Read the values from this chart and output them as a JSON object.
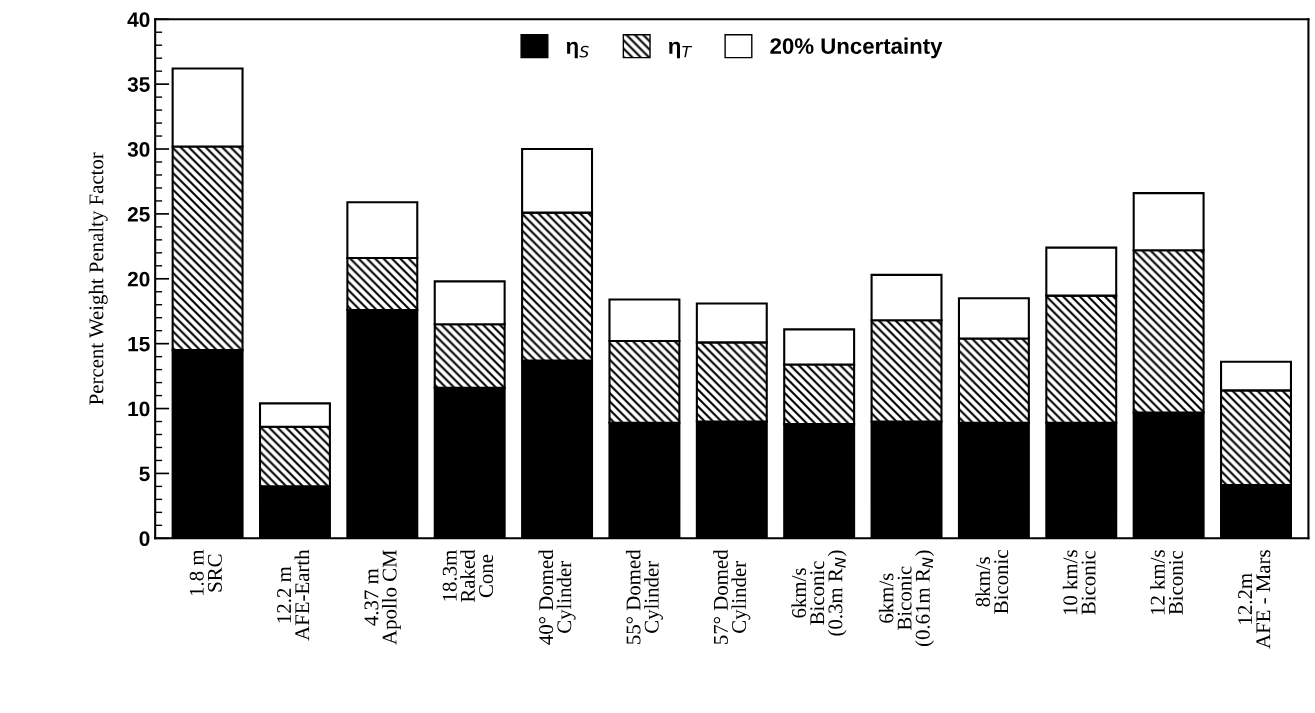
{
  "chart_data": {
    "type": "bar",
    "stacked": true,
    "ylabel": "Percent Weight Penalty Factor",
    "categories": [
      "1.8 m\nSRC",
      "12.2 m\nAFE-Earth",
      "4.37 m\nApollo CM",
      "18.3m\nRaked\nCone",
      "40° Domed\nCylinder",
      "55° Domed\nCylinder",
      "57° Domed\nCylinder",
      "6km/s\nBiconic\n(0.3m R$_{N}$)",
      "6km/s\nBiconic\n(0.61m R$_{N}$)",
      "8km/s\nBiconic",
      "10 km/s\nBiconic",
      "12 km/s\nBiconic",
      "12.2m\nAFE - Mars"
    ],
    "series": [
      {
        "name": "η$_{S}$",
        "color": "#000000",
        "values": [
          14.5,
          4.0,
          17.6,
          11.6,
          13.7,
          8.9,
          9.0,
          8.8,
          9.0,
          8.9,
          8.9,
          9.7,
          4.1
        ]
      },
      {
        "name": "η$_{T}$",
        "color": "#000000",
        "values": [
          15.7,
          4.6,
          4.0,
          4.9,
          11.4,
          6.3,
          6.1,
          4.6,
          7.8,
          6.5,
          9.8,
          12.5,
          7.3
        ]
      },
      {
        "name": "20% Uncertainty",
        "color": "#ffffff",
        "values": [
          6.0,
          1.8,
          4.3,
          3.3,
          4.9,
          3.2,
          3.0,
          2.7,
          3.5,
          3.1,
          3.7,
          4.4,
          2.2
        ]
      }
    ],
    "ylim": [
      0,
      40
    ],
    "yticks": [
      0,
      5,
      10,
      15,
      20,
      25,
      30,
      35,
      40
    ],
    "grid": false,
    "legend": "top"
  }
}
